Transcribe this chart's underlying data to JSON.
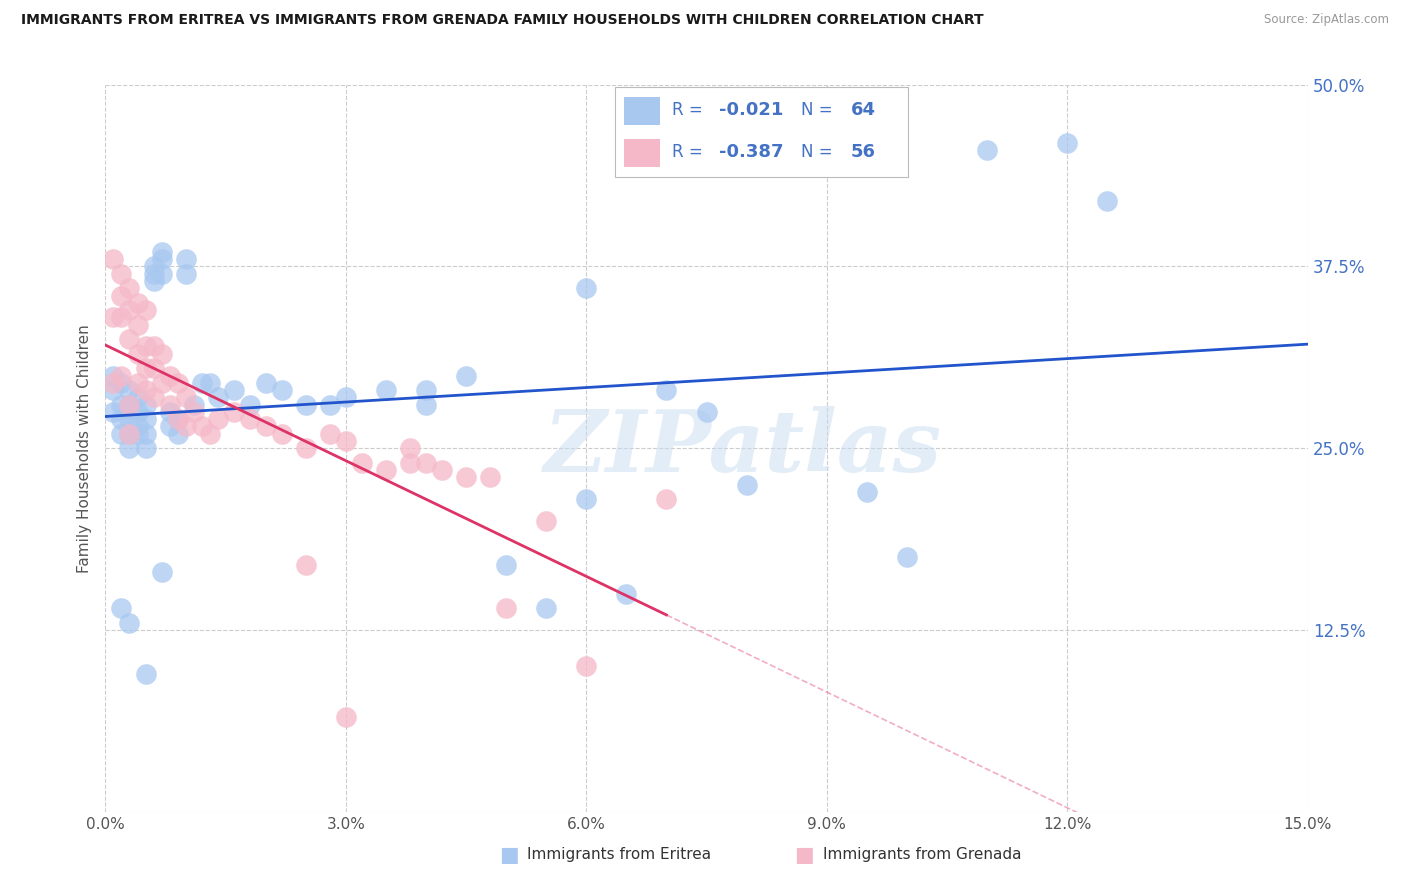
{
  "title": "IMMIGRANTS FROM ERITREA VS IMMIGRANTS FROM GRENADA FAMILY HOUSEHOLDS WITH CHILDREN CORRELATION CHART",
  "source": "Source: ZipAtlas.com",
  "ylabel": "Family Households with Children",
  "xlim": [
    0.0,
    0.15
  ],
  "ylim": [
    0.0,
    0.5
  ],
  "x_ticks": [
    0.0,
    0.03,
    0.06,
    0.09,
    0.12,
    0.15
  ],
  "y_ticks": [
    0.0,
    0.125,
    0.25,
    0.375,
    0.5
  ],
  "legend_eritrea_R": "-0.021",
  "legend_eritrea_N": "64",
  "legend_grenada_R": "-0.387",
  "legend_grenada_N": "56",
  "color_eritrea": "#A8C8F0",
  "color_eritrea_edge": "#7EB3E8",
  "color_grenada": "#F5B8C8",
  "color_grenada_edge": "#F088A8",
  "line_color_eritrea": "#2255CC",
  "line_color_grenada": "#DD3366",
  "watermark_text": "ZIPatlas",
  "label_eritrea": "Immigrants from Eritrea",
  "label_grenada": "Immigrants from Grenada",
  "eritrea_x": [
    0.001,
    0.001,
    0.001,
    0.002,
    0.002,
    0.002,
    0.002,
    0.003,
    0.003,
    0.003,
    0.003,
    0.003,
    0.004,
    0.004,
    0.004,
    0.004,
    0.005,
    0.005,
    0.005,
    0.005,
    0.006,
    0.006,
    0.006,
    0.007,
    0.007,
    0.007,
    0.008,
    0.008,
    0.009,
    0.009,
    0.01,
    0.01,
    0.011,
    0.012,
    0.013,
    0.014,
    0.016,
    0.018,
    0.02,
    0.022,
    0.025,
    0.028,
    0.03,
    0.035,
    0.04,
    0.045,
    0.05,
    0.055,
    0.06,
    0.065,
    0.07,
    0.075,
    0.095,
    0.1,
    0.11,
    0.12,
    0.125,
    0.04,
    0.06,
    0.08,
    0.002,
    0.003,
    0.005,
    0.007
  ],
  "eritrea_y": [
    0.3,
    0.29,
    0.275,
    0.295,
    0.28,
    0.27,
    0.26,
    0.29,
    0.28,
    0.27,
    0.26,
    0.25,
    0.285,
    0.275,
    0.265,
    0.26,
    0.28,
    0.27,
    0.26,
    0.25,
    0.375,
    0.37,
    0.365,
    0.38,
    0.385,
    0.37,
    0.275,
    0.265,
    0.27,
    0.26,
    0.38,
    0.37,
    0.28,
    0.295,
    0.295,
    0.285,
    0.29,
    0.28,
    0.295,
    0.29,
    0.28,
    0.28,
    0.285,
    0.29,
    0.28,
    0.3,
    0.17,
    0.14,
    0.36,
    0.15,
    0.29,
    0.275,
    0.22,
    0.175,
    0.455,
    0.46,
    0.42,
    0.29,
    0.215,
    0.225,
    0.14,
    0.13,
    0.095,
    0.165
  ],
  "grenada_x": [
    0.001,
    0.001,
    0.001,
    0.002,
    0.002,
    0.002,
    0.002,
    0.003,
    0.003,
    0.003,
    0.003,
    0.003,
    0.004,
    0.004,
    0.004,
    0.004,
    0.005,
    0.005,
    0.005,
    0.005,
    0.006,
    0.006,
    0.006,
    0.007,
    0.007,
    0.008,
    0.008,
    0.009,
    0.009,
    0.01,
    0.01,
    0.011,
    0.012,
    0.013,
    0.014,
    0.016,
    0.018,
    0.02,
    0.022,
    0.025,
    0.028,
    0.03,
    0.032,
    0.035,
    0.038,
    0.04,
    0.042,
    0.045,
    0.048,
    0.05,
    0.055,
    0.06,
    0.07,
    0.038,
    0.025,
    0.03
  ],
  "grenada_y": [
    0.295,
    0.38,
    0.34,
    0.37,
    0.355,
    0.34,
    0.3,
    0.36,
    0.345,
    0.325,
    0.28,
    0.26,
    0.35,
    0.335,
    0.315,
    0.295,
    0.345,
    0.32,
    0.305,
    0.29,
    0.32,
    0.305,
    0.285,
    0.315,
    0.295,
    0.3,
    0.28,
    0.295,
    0.27,
    0.285,
    0.265,
    0.275,
    0.265,
    0.26,
    0.27,
    0.275,
    0.27,
    0.265,
    0.26,
    0.25,
    0.26,
    0.255,
    0.24,
    0.235,
    0.24,
    0.24,
    0.235,
    0.23,
    0.23,
    0.14,
    0.2,
    0.1,
    0.215,
    0.25,
    0.17,
    0.065
  ]
}
